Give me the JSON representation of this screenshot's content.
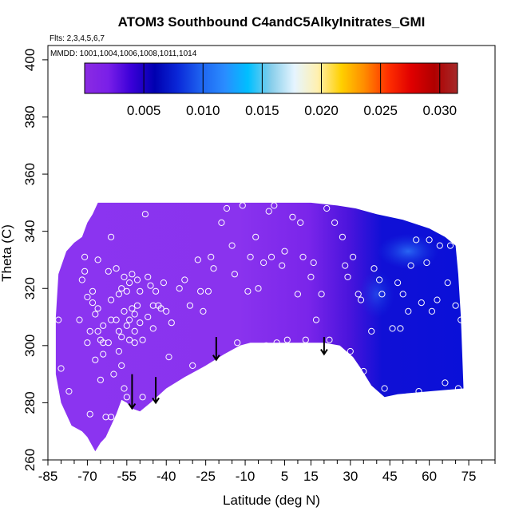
{
  "chart_data": {
    "type": "heatmap",
    "title": "ATOM3 Southbound C4andC5AlkyInitrates_GMI",
    "flights_note": "Flts: 2,3,4,5,6,7",
    "dates_note": "MMDD: 1001,1004,1006,1008,1011,1014",
    "xlabel": "Latitude (deg N)",
    "ylabel": "Theta (C)",
    "xlim": [
      -85,
      85
    ],
    "ylim": [
      260,
      405
    ],
    "x_ticks": [
      -85,
      -70,
      -55,
      -40,
      -25,
      -10,
      5,
      15,
      30,
      45,
      60,
      75
    ],
    "y_ticks": [
      260,
      280,
      300,
      320,
      340,
      360,
      380,
      400
    ],
    "colorbar": {
      "range": [
        0,
        0.0315
      ],
      "tick_values": [
        0.005,
        0.01,
        0.015,
        0.02,
        0.025,
        0.03
      ],
      "tick_labels": [
        "0.005",
        "0.010",
        "0.015",
        "0.020",
        "0.025",
        "0.030"
      ],
      "colors": [
        "#8a2be2",
        "#7a1fe8",
        "#3a00d8",
        "#0000b0",
        "#0a28d8",
        "#1e64f0",
        "#2a8cff",
        "#00bfff",
        "#87ceeb",
        "#e6f5ff",
        "#fff0b0",
        "#ffd000",
        "#ff8c00",
        "#ff3000",
        "#e00000",
        "#b00000",
        "#a52a2a"
      ]
    },
    "field_colors": {
      "low": "#8b34f0",
      "mid": "#5a1ee0",
      "high": "#0a0ad8",
      "peak": "#2060f0"
    },
    "marker_color": "#ffffff",
    "arrow_latitudes": [
      -53,
      -44,
      -21,
      20
    ],
    "arrow_theta_tops": [
      290,
      289,
      303,
      303
    ],
    "arrow_theta_bottoms": [
      278,
      280,
      295,
      297
    ],
    "observations": [
      [
        -81,
        309
      ],
      [
        -80,
        292
      ],
      [
        -77,
        284
      ],
      [
        -73,
        309
      ],
      [
        -72,
        323
      ],
      [
        -71,
        331
      ],
      [
        -71,
        326
      ],
      [
        -70,
        317
      ],
      [
        -70,
        301
      ],
      [
        -69,
        305
      ],
      [
        -69,
        276
      ],
      [
        -68,
        319
      ],
      [
        -68,
        315
      ],
      [
        -67,
        311
      ],
      [
        -67,
        295
      ],
      [
        -66,
        330
      ],
      [
        -66,
        313
      ],
      [
        -66,
        305
      ],
      [
        -65,
        302
      ],
      [
        -65,
        288
      ],
      [
        -64,
        307
      ],
      [
        -64,
        301
      ],
      [
        -64,
        297
      ],
      [
        -63,
        275
      ],
      [
        -62,
        326
      ],
      [
        -62,
        301
      ],
      [
        -61,
        338
      ],
      [
        -61,
        316
      ],
      [
        -61,
        309
      ],
      [
        -61,
        275
      ],
      [
        -60,
        290
      ],
      [
        -59,
        327
      ],
      [
        -59,
        309
      ],
      [
        -58,
        318
      ],
      [
        -58,
        305
      ],
      [
        -58,
        298
      ],
      [
        -57,
        320
      ],
      [
        -57,
        303
      ],
      [
        -57,
        293
      ],
      [
        -56,
        324
      ],
      [
        -56,
        312
      ],
      [
        -56,
        285
      ],
      [
        -55,
        319
      ],
      [
        -55,
        307
      ],
      [
        -55,
        282
      ],
      [
        -54,
        322
      ],
      [
        -54,
        309
      ],
      [
        -54,
        302
      ],
      [
        -53,
        325
      ],
      [
        -53,
        313
      ],
      [
        -52,
        311
      ],
      [
        -52,
        305
      ],
      [
        -52,
        301
      ],
      [
        -51,
        323
      ],
      [
        -51,
        314
      ],
      [
        -50,
        319
      ],
      [
        -50,
        308
      ],
      [
        -49,
        302
      ],
      [
        -49,
        282
      ],
      [
        -48,
        346
      ],
      [
        -47,
        324
      ],
      [
        -47,
        310
      ],
      [
        -46,
        321
      ],
      [
        -45,
        314
      ],
      [
        -45,
        306
      ],
      [
        -44,
        319
      ],
      [
        -43,
        314
      ],
      [
        -42,
        313
      ],
      [
        -41,
        322
      ],
      [
        -40,
        312
      ],
      [
        -39,
        296
      ],
      [
        -38,
        308
      ],
      [
        -35,
        320
      ],
      [
        -33,
        323
      ],
      [
        -31,
        314
      ],
      [
        -30,
        293
      ],
      [
        -28,
        330
      ],
      [
        -27,
        319
      ],
      [
        -26,
        312
      ],
      [
        -24,
        319
      ],
      [
        -23,
        331
      ],
      [
        -22,
        327
      ],
      [
        -19,
        343
      ],
      [
        -17,
        348
      ],
      [
        -15,
        335
      ],
      [
        -14,
        325
      ],
      [
        -13,
        301
      ],
      [
        -11,
        349
      ],
      [
        -9,
        319
      ],
      [
        -8,
        331
      ],
      [
        -6,
        338
      ],
      [
        -5,
        320
      ],
      [
        -3,
        329
      ],
      [
        -2,
        300
      ],
      [
        -1,
        347
      ],
      [
        0,
        331
      ],
      [
        1,
        349
      ],
      [
        2,
        301
      ],
      [
        4,
        328
      ],
      [
        5,
        333
      ],
      [
        6,
        302
      ],
      [
        8,
        345
      ],
      [
        10,
        318
      ],
      [
        11,
        343
      ],
      [
        12,
        331
      ],
      [
        13,
        302
      ],
      [
        15,
        324
      ],
      [
        16,
        329
      ],
      [
        17,
        309
      ],
      [
        19,
        318
      ],
      [
        21,
        348
      ],
      [
        22,
        302
      ],
      [
        24,
        343
      ],
      [
        27,
        338
      ],
      [
        28,
        328
      ],
      [
        29,
        324
      ],
      [
        30,
        298
      ],
      [
        31,
        331
      ],
      [
        33,
        318
      ],
      [
        34,
        316
      ],
      [
        35,
        291
      ],
      [
        36,
        281
      ],
      [
        38,
        305
      ],
      [
        39,
        327
      ],
      [
        41,
        323
      ],
      [
        42,
        318
      ],
      [
        43,
        285
      ],
      [
        46,
        306
      ],
      [
        48,
        322
      ],
      [
        49,
        306
      ],
      [
        50,
        318
      ],
      [
        52,
        312
      ],
      [
        53,
        328
      ],
      [
        55,
        337
      ],
      [
        56,
        284
      ],
      [
        57,
        315
      ],
      [
        59,
        329
      ],
      [
        60,
        337
      ],
      [
        61,
        312
      ],
      [
        63,
        316
      ],
      [
        64,
        335
      ],
      [
        66,
        287
      ],
      [
        67,
        322
      ],
      [
        68,
        335
      ],
      [
        70,
        314
      ],
      [
        71,
        285
      ],
      [
        72,
        309
      ]
    ]
  }
}
